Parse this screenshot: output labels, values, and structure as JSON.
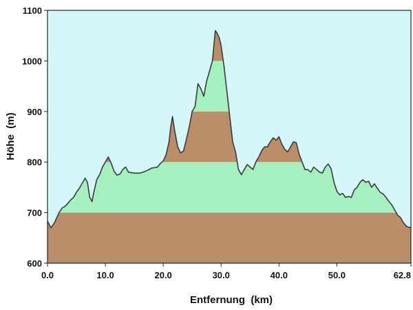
{
  "chart_data": {
    "type": "area",
    "title": "",
    "xlabel": "Entfernung  (km)",
    "ylabel": "Höhe  (m)",
    "xlim": [
      0,
      62.8
    ],
    "ylim": [
      600,
      1100
    ],
    "x_ticks": [
      0,
      10,
      20,
      30,
      40,
      50,
      62.8
    ],
    "x_tick_labels": [
      "0.0",
      "10.0",
      "20.0",
      "30.0",
      "40.0",
      "50.0",
      "62.8"
    ],
    "y_ticks": [
      600,
      700,
      800,
      900,
      1000,
      1100
    ],
    "y_tick_labels": [
      "600",
      "700",
      "800",
      "900",
      "1000",
      "1100"
    ],
    "band_boundaries": [
      700,
      800,
      900,
      1000
    ],
    "band_colors": [
      "#b98e68",
      "#a4f0bf"
    ],
    "background_color": "#d6f7fa",
    "line_color": "#3a3a3a",
    "grid": false,
    "series": [
      {
        "x": [
          0.0,
          0.6,
          1.2,
          2.0,
          2.6,
          3.0,
          3.5,
          4.0,
          4.5,
          5.0,
          5.5,
          6.0,
          6.5,
          6.9,
          7.3,
          7.7,
          8.0,
          8.5,
          9.0,
          9.5,
          10.0,
          10.5,
          11.0,
          11.5,
          12.0,
          12.5,
          13.0,
          13.5,
          14.0,
          15.0,
          16.0,
          17.0,
          18.0,
          19.0,
          19.5,
          20.0,
          20.5,
          21.0,
          21.3,
          21.6,
          22.0,
          22.5,
          23.0,
          23.5,
          24.0,
          24.5,
          25.0,
          25.5,
          26.0,
          26.5,
          27.0,
          27.5,
          28.0,
          28.5,
          29.0,
          29.3,
          29.7,
          30.0,
          30.5,
          31.0,
          31.5,
          32.0,
          32.5,
          33.0,
          33.5,
          34.0,
          34.5,
          35.0,
          35.5,
          36.0,
          36.5,
          37.0,
          37.5,
          38.0,
          38.5,
          39.0,
          39.5,
          40.0,
          40.5,
          41.0,
          41.5,
          42.0,
          42.5,
          43.0,
          43.5,
          44.0,
          44.5,
          45.0,
          45.5,
          46.0,
          46.5,
          47.0,
          47.5,
          48.0,
          48.5,
          49.0,
          49.5,
          50.0,
          50.5,
          51.0,
          51.5,
          52.0,
          52.5,
          53.0,
          53.5,
          54.0,
          54.5,
          55.0,
          55.5,
          56.0,
          56.5,
          57.0,
          57.5,
          58.0,
          58.5,
          59.0,
          59.5,
          60.0,
          60.5,
          61.0,
          61.5,
          62.0,
          62.4,
          62.8
        ],
        "y": [
          683,
          670,
          680,
          700,
          710,
          712,
          718,
          725,
          730,
          740,
          748,
          758,
          768,
          760,
          730,
          722,
          740,
          765,
          775,
          790,
          800,
          810,
          798,
          782,
          774,
          776,
          785,
          790,
          780,
          778,
          778,
          782,
          788,
          790,
          797,
          802,
          815,
          840,
          870,
          890,
          860,
          830,
          818,
          822,
          845,
          870,
          900,
          910,
          955,
          945,
          930,
          960,
          980,
          1000,
          1060,
          1055,
          1045,
          1030,
          990,
          940,
          890,
          840,
          820,
          785,
          775,
          785,
          795,
          790,
          785,
          800,
          810,
          822,
          830,
          830,
          840,
          848,
          843,
          850,
          835,
          825,
          820,
          830,
          840,
          838,
          815,
          800,
          785,
          785,
          780,
          790,
          785,
          780,
          778,
          790,
          796,
          787,
          760,
          742,
          735,
          738,
          730,
          732,
          730,
          745,
          750,
          760,
          765,
          760,
          762,
          750,
          757,
          748,
          740,
          737,
          730,
          722,
          715,
          705,
          695,
          690,
          680,
          673,
          671,
          670
        ]
      }
    ]
  }
}
